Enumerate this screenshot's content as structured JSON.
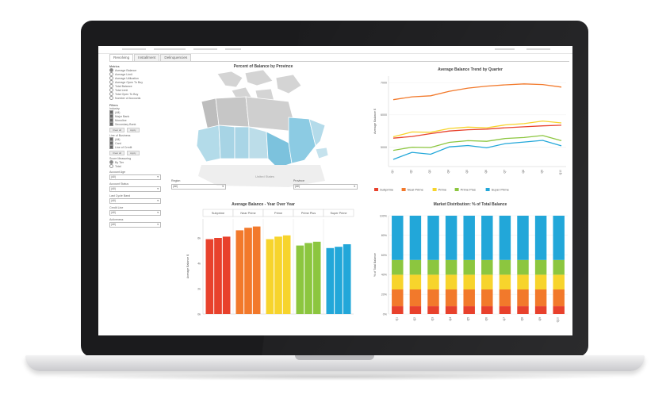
{
  "tabs": [
    {
      "label": "Revolving"
    },
    {
      "label": "Installment"
    },
    {
      "label": "Delinquencies"
    }
  ],
  "sidebar": {
    "metrics_heading": "Metrics",
    "metrics": [
      "Average Balance",
      "Average Limit",
      "Average Utilization",
      "Average Open To Buy",
      "Total Balance",
      "Total Limit",
      "Total Open To Buy",
      "Number of Accounts"
    ],
    "filters_heading": "Filters",
    "industry_heading": "Industry",
    "industry": [
      "(All)",
      "Major Bank",
      "Monoline",
      "Secondary Bank"
    ],
    "line_of_business_heading": "Line of Business",
    "line_of_business": [
      "(All)",
      "Card",
      "Line of Credit"
    ],
    "clear_label": "Clear all",
    "apply_label": "Apply",
    "score_heading": "Score Measuring",
    "score_options": [
      "By Tier",
      "Total"
    ],
    "dropdowns": [
      {
        "label": "Account Age",
        "value": "(All)"
      },
      {
        "label": "Account Status",
        "value": "(All)"
      },
      {
        "label": "Last Cycle Band",
        "value": "(All)"
      },
      {
        "label": "Credit Line",
        "value": "(All)"
      },
      {
        "label": "Activeness",
        "value": "(All)"
      }
    ]
  },
  "map": {
    "title": "Percent of Balance by Province",
    "region_label": "Region",
    "region_value": "(All)",
    "province_label": "Province",
    "province_value": "(All)",
    "us_label": "United States"
  },
  "colors": {
    "subprime": "#e8412c",
    "near_prime": "#f2792b",
    "prime": "#f7d42c",
    "prime_plus": "#8cc63f",
    "super_prime": "#22a7d9"
  },
  "chart_data": [
    {
      "type": "line",
      "title": "Average Balance Trend by Quarter",
      "ylabel": "Average Balance $",
      "yticks": [
        "7000",
        "6000",
        "5000"
      ],
      "x": [
        "Q1",
        "Q2",
        "Q3",
        "Q4",
        "Q5",
        "Q6",
        "Q7",
        "Q8",
        "Q9",
        "Q10"
      ],
      "series": [
        {
          "name": "Subprime",
          "values": [
            5280,
            5330,
            5420,
            5500,
            5540,
            5560,
            5600,
            5630,
            5660,
            5680
          ]
        },
        {
          "name": "Near Prime",
          "values": [
            6470,
            6560,
            6590,
            6730,
            6830,
            6890,
            6930,
            6960,
            6940,
            6860
          ]
        },
        {
          "name": "Prime",
          "values": [
            5320,
            5470,
            5460,
            5580,
            5620,
            5600,
            5690,
            5730,
            5810,
            5750
          ]
        },
        {
          "name": "Prime Plus",
          "values": [
            4900,
            5000,
            4990,
            5150,
            5200,
            5180,
            5270,
            5300,
            5360,
            5200
          ]
        },
        {
          "name": "Super Prime",
          "values": [
            4620,
            4840,
            4780,
            5010,
            5050,
            4980,
            5110,
            5160,
            5210,
            5040
          ]
        }
      ],
      "legend": [
        "Subprime",
        "Near Prime",
        "Prime",
        "Prime Plus",
        "Super Prime"
      ],
      "ylim": [
        4400,
        7200
      ]
    },
    {
      "type": "bar",
      "title": "Average Balance - Year Over Year",
      "ylabel": "Average Balance $",
      "yticks": [
        "0k",
        "2k",
        "4k",
        "6k"
      ],
      "groups": [
        "Subprime",
        "Near Prime",
        "Prime",
        "Prime Plus",
        "Super Prime"
      ],
      "values": [
        [
          5.9,
          6.0,
          6.1
        ],
        [
          6.6,
          6.8,
          6.9
        ],
        [
          5.9,
          6.1,
          6.2
        ],
        [
          5.4,
          5.6,
          5.7
        ],
        [
          5.2,
          5.3,
          5.5
        ]
      ],
      "ylim": [
        0,
        7.5
      ]
    },
    {
      "type": "bar",
      "title": "Market Distribution: % of Total Balance",
      "ylabel": "% of Total Balance",
      "yticks": [
        "100%",
        "80%",
        "60%",
        "40%",
        "20%",
        "0%"
      ],
      "categories": [
        "Q1",
        "Q2",
        "Q3",
        "Q4",
        "Q5",
        "Q6",
        "Q7",
        "Q8",
        "Q9",
        "Q10"
      ],
      "series": [
        {
          "name": "Subprime",
          "values": [
            8,
            8,
            8,
            8,
            8,
            8,
            8,
            8,
            8,
            8
          ]
        },
        {
          "name": "Near Prime",
          "values": [
            17,
            17,
            17,
            17,
            17,
            17,
            17,
            17,
            17,
            17
          ]
        },
        {
          "name": "Prime",
          "values": [
            15,
            15,
            15,
            15,
            15,
            15,
            15,
            15,
            15,
            15
          ]
        },
        {
          "name": "Prime Plus",
          "values": [
            15,
            15,
            15,
            15,
            15,
            15,
            15,
            15,
            15,
            15
          ]
        },
        {
          "name": "Super Prime",
          "values": [
            45,
            45,
            45,
            45,
            45,
            45,
            45,
            45,
            45,
            45
          ]
        }
      ],
      "ylim": [
        0,
        100
      ]
    }
  ]
}
